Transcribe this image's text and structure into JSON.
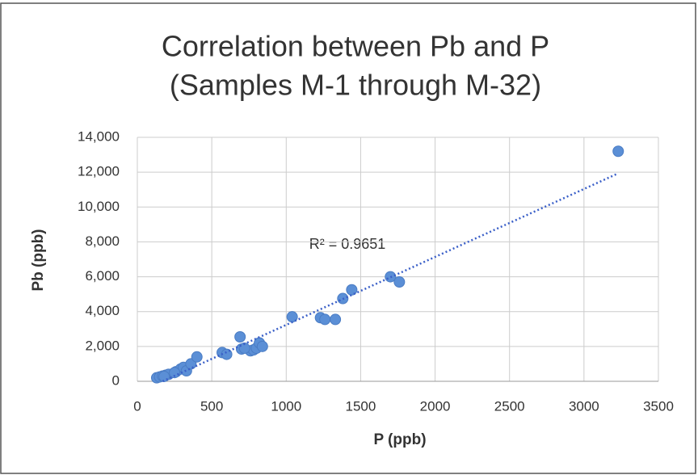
{
  "chart_data": {
    "type": "scatter",
    "title": "Correlation between Pb and P",
    "subtitle": "(Samples M-1 through M-32)",
    "xlabel": "P (ppb)",
    "ylabel": "Pb (ppb)",
    "annotation": "R² = 0.9651",
    "color": "#5b8fd6",
    "trendline_color": "#3a5fc8",
    "grid": true,
    "x": [
      130,
      150,
      170,
      190,
      210,
      260,
      290,
      310,
      330,
      360,
      400,
      570,
      600,
      690,
      700,
      760,
      780,
      800,
      820,
      840,
      1040,
      1230,
      1260,
      1330,
      1380,
      1440,
      1700,
      1760,
      3230,
      250,
      720,
      180
    ],
    "values": [
      200,
      250,
      300,
      350,
      400,
      550,
      700,
      800,
      600,
      1000,
      1400,
      1650,
      1550,
      2550,
      1850,
      1750,
      1800,
      1900,
      2200,
      2000,
      3700,
      3650,
      3550,
      3550,
      4750,
      5250,
      6000,
      5700,
      13200,
      500,
      1900,
      280
    ],
    "xlim": [
      0,
      3500
    ],
    "xticks": [
      0,
      500,
      1000,
      1500,
      2000,
      2500,
      3000,
      3500
    ],
    "ylim": [
      0,
      14000
    ],
    "yticks": [
      0,
      {
        "value": 2000,
        "label": "2,000"
      },
      {
        "value": 4000,
        "label": "4,000"
      },
      {
        "value": 6000,
        "label": "6,000"
      },
      {
        "value": 8000,
        "label": "8,000"
      },
      {
        "value": 10000,
        "label": "10,000"
      },
      {
        "value": 12000,
        "label": "12,000"
      },
      {
        "value": 14000,
        "label": "14,000"
      }
    ]
  }
}
